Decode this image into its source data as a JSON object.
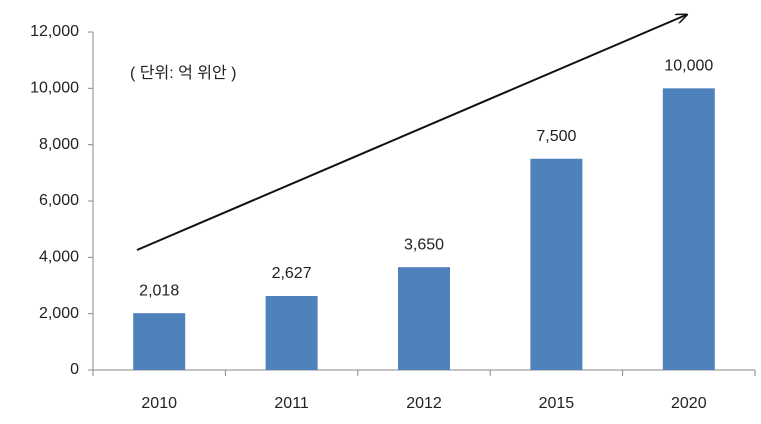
{
  "chart_data": {
    "type": "bar",
    "annotation": "( 단위: 억 위안 )",
    "categories": [
      "2010",
      "2011",
      "2012",
      "2015",
      "2020"
    ],
    "values": [
      2018,
      2627,
      3650,
      7500,
      10000
    ],
    "value_labels": [
      "2,018",
      "2,627",
      "3,650",
      "7,500",
      "10,000"
    ],
    "color": "#4f81bd",
    "ylim": [
      0,
      12000
    ],
    "yticks": [
      0,
      {
        "value": 2000,
        "label": "2,000"
      },
      {
        "value": 4000,
        "label": "4,000"
      },
      {
        "value": 6000,
        "label": "6,000"
      },
      {
        "value": 8000,
        "label": "8,000"
      },
      {
        "value": 10000,
        "label": "10,000"
      },
      {
        "value": 12000,
        "label": "12,000"
      }
    ],
    "grid": false
  }
}
